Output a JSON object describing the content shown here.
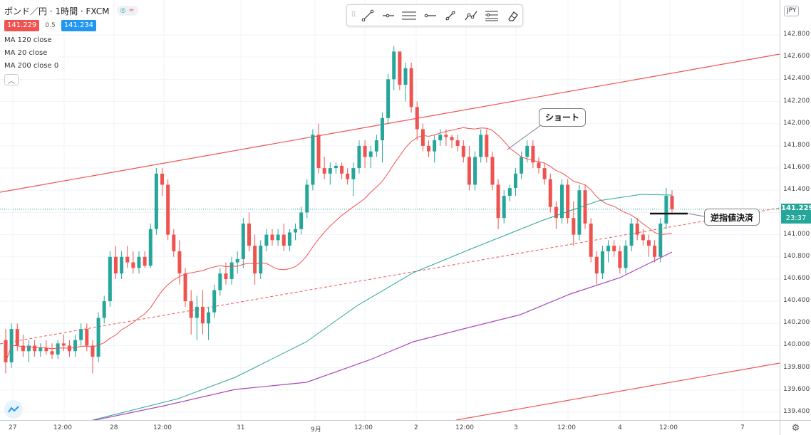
{
  "header": {
    "symbol": "ポンド／円 · 1時間 · FXCM",
    "bid": "141.229",
    "spread": "0.5",
    "ask": "141.234",
    "bid_color": "#ef5350",
    "ask_color": "#2196f3",
    "indicator_toggle": [
      "◎",
      "≈"
    ]
  },
  "indicators": [
    {
      "label": "MA 120 close",
      "color": "#26a69a"
    },
    {
      "label": "MA 20 close",
      "color": "#ef5350"
    },
    {
      "label": "MA 200 close 0",
      "color": "#ab47bc"
    }
  ],
  "collapse_icon": "︿",
  "toolbar_tools": [
    "trend-line-icon",
    "horizontal-ray-icon",
    "parallel-channel-icon",
    "horizontal-line-icon",
    "trend-angle-icon",
    "path-icon",
    "pitchfork-icon",
    "eraser-icon"
  ],
  "price_axis": {
    "currency": "JPY",
    "ticks": [
      "142.800",
      "142.600",
      "142.400",
      "142.200",
      "142.000",
      "141.800",
      "141.600",
      "141.400",
      "141.200",
      "141.000",
      "140.800",
      "140.600",
      "140.400",
      "140.200",
      "140.000",
      "139.800",
      "139.600",
      "139.400"
    ],
    "current_price": "141.229",
    "countdown": "23:37"
  },
  "time_axis": {
    "ticks": [
      "27",
      "12:00",
      "28",
      "12:00",
      "31",
      "9月",
      "12:00",
      "2",
      "12:00",
      "3",
      "12:00",
      "4",
      "12:00",
      "7"
    ]
  },
  "callouts": {
    "short": "ショート",
    "stop": "逆指値決済"
  },
  "settings_icon": "⚙",
  "chart_data": {
    "type": "candlestick",
    "symbol": "GBP/JPY",
    "interval": "1h",
    "ylim": [
      139.35,
      142.9
    ],
    "candles": [
      [
        140.05,
        140.15,
        139.75,
        139.85
      ],
      [
        139.85,
        140.2,
        139.8,
        140.15
      ],
      [
        140.15,
        140.2,
        139.95,
        140.0
      ],
      [
        140.0,
        140.1,
        139.9,
        139.95
      ],
      [
        139.95,
        140.05,
        139.85,
        140.0
      ],
      [
        140.0,
        140.05,
        139.9,
        139.95
      ],
      [
        139.95,
        140.02,
        139.9,
        139.98
      ],
      [
        139.98,
        140.05,
        139.92,
        139.95
      ],
      [
        139.95,
        140.02,
        139.88,
        139.92
      ],
      [
        139.92,
        140.05,
        139.88,
        140.02
      ],
      [
        140.02,
        140.1,
        139.95,
        140.0
      ],
      [
        140.0,
        140.05,
        139.9,
        139.95
      ],
      [
        139.95,
        140.1,
        139.9,
        140.05
      ],
      [
        140.05,
        140.2,
        140.0,
        140.15
      ],
      [
        140.15,
        140.2,
        139.95,
        140.0
      ],
      [
        140.0,
        140.05,
        139.75,
        139.9
      ],
      [
        139.9,
        140.3,
        139.85,
        140.25
      ],
      [
        140.25,
        140.45,
        140.2,
        140.4
      ],
      [
        140.4,
        140.85,
        140.35,
        140.8
      ],
      [
        140.8,
        140.9,
        140.6,
        140.65
      ],
      [
        140.65,
        140.85,
        140.6,
        140.8
      ],
      [
        140.8,
        140.9,
        140.7,
        140.75
      ],
      [
        140.75,
        140.85,
        140.65,
        140.7
      ],
      [
        140.7,
        140.85,
        140.65,
        140.8
      ],
      [
        140.8,
        140.85,
        140.7,
        140.72
      ],
      [
        140.72,
        141.1,
        140.7,
        141.05
      ],
      [
        141.05,
        141.6,
        141.0,
        141.55
      ],
      [
        141.55,
        141.6,
        141.35,
        141.45
      ],
      [
        141.45,
        141.5,
        140.95,
        141.0
      ],
      [
        141.0,
        141.05,
        140.8,
        140.85
      ],
      [
        140.85,
        140.95,
        140.55,
        140.65
      ],
      [
        140.65,
        140.7,
        140.35,
        140.4
      ],
      [
        140.4,
        140.5,
        140.1,
        140.25
      ],
      [
        140.25,
        140.45,
        140.05,
        140.35
      ],
      [
        140.35,
        140.5,
        140.1,
        140.2
      ],
      [
        140.2,
        140.35,
        140.05,
        140.3
      ],
      [
        140.3,
        140.55,
        140.25,
        140.5
      ],
      [
        140.5,
        140.7,
        140.45,
        140.65
      ],
      [
        140.65,
        140.75,
        140.55,
        140.6
      ],
      [
        140.6,
        140.8,
        140.55,
        140.75
      ],
      [
        140.75,
        140.85,
        140.65,
        140.78
      ],
      [
        140.78,
        141.15,
        140.7,
        141.1
      ],
      [
        141.1,
        141.2,
        140.85,
        140.9
      ],
      [
        140.9,
        141.0,
        140.55,
        140.65
      ],
      [
        140.65,
        140.95,
        140.6,
        140.9
      ],
      [
        140.9,
        141.05,
        140.85,
        141.0
      ],
      [
        141.0,
        141.05,
        140.9,
        140.95
      ],
      [
        140.95,
        141.05,
        140.9,
        141.0
      ],
      [
        141.0,
        141.1,
        140.85,
        140.9
      ],
      [
        140.9,
        141.05,
        140.85,
        141.02
      ],
      [
        141.02,
        141.1,
        140.95,
        141.05
      ],
      [
        141.05,
        141.25,
        141.0,
        141.2
      ],
      [
        141.2,
        141.5,
        141.15,
        141.45
      ],
      [
        141.45,
        141.95,
        141.4,
        141.9
      ],
      [
        141.9,
        142.0,
        141.55,
        141.6
      ],
      [
        141.6,
        141.7,
        141.5,
        141.55
      ],
      [
        141.55,
        141.65,
        141.45,
        141.6
      ],
      [
        141.6,
        141.65,
        141.55,
        141.62
      ],
      [
        141.62,
        141.65,
        141.5,
        141.55
      ],
      [
        141.55,
        141.6,
        141.45,
        141.5
      ],
      [
        141.5,
        141.65,
        141.35,
        141.6
      ],
      [
        141.6,
        141.85,
        141.55,
        141.8
      ],
      [
        141.8,
        141.85,
        141.6,
        141.7
      ],
      [
        141.7,
        141.8,
        141.6,
        141.75
      ],
      [
        141.75,
        141.9,
        141.7,
        141.85
      ],
      [
        141.85,
        142.1,
        141.65,
        142.05
      ],
      [
        142.05,
        142.45,
        142.0,
        142.4
      ],
      [
        142.4,
        142.7,
        142.3,
        142.65
      ],
      [
        142.65,
        142.65,
        142.3,
        142.35
      ],
      [
        142.35,
        142.55,
        142.2,
        142.5
      ],
      [
        142.5,
        142.55,
        142.1,
        142.15
      ],
      [
        142.15,
        142.2,
        141.85,
        141.95
      ],
      [
        141.95,
        142.0,
        141.75,
        141.8
      ],
      [
        141.8,
        141.85,
        141.7,
        141.75
      ],
      [
        141.75,
        141.9,
        141.65,
        141.85
      ],
      [
        141.85,
        141.95,
        141.8,
        141.9
      ],
      [
        141.9,
        141.95,
        141.8,
        141.88
      ],
      [
        141.88,
        141.9,
        141.78,
        141.85
      ],
      [
        141.85,
        141.9,
        141.75,
        141.8
      ],
      [
        141.8,
        141.85,
        141.65,
        141.7
      ],
      [
        141.7,
        141.8,
        141.4,
        141.45
      ],
      [
        141.45,
        141.75,
        141.4,
        141.7
      ],
      [
        141.7,
        141.95,
        141.65,
        141.9
      ],
      [
        141.9,
        141.95,
        141.65,
        141.7
      ],
      [
        141.7,
        141.75,
        141.4,
        141.45
      ],
      [
        141.45,
        141.5,
        141.05,
        141.15
      ],
      [
        141.15,
        141.4,
        141.1,
        141.35
      ],
      [
        141.35,
        141.45,
        141.3,
        141.42
      ],
      [
        141.42,
        141.6,
        141.35,
        141.55
      ],
      [
        141.55,
        141.75,
        141.5,
        141.7
      ],
      [
        141.7,
        141.85,
        141.65,
        141.8
      ],
      [
        141.8,
        141.85,
        141.6,
        141.65
      ],
      [
        141.65,
        141.7,
        141.55,
        141.6
      ],
      [
        141.6,
        141.65,
        141.45,
        141.5
      ],
      [
        141.5,
        141.55,
        141.2,
        141.25
      ],
      [
        141.25,
        141.3,
        141.05,
        141.15
      ],
      [
        141.15,
        141.5,
        141.1,
        141.45
      ],
      [
        141.45,
        141.5,
        141.1,
        141.15
      ],
      [
        141.15,
        141.3,
        140.9,
        141.0
      ],
      [
        141.0,
        141.45,
        140.95,
        141.4
      ],
      [
        141.4,
        141.45,
        141.05,
        141.1
      ],
      [
        141.1,
        141.15,
        140.75,
        140.8
      ],
      [
        140.8,
        140.85,
        140.55,
        140.65
      ],
      [
        140.65,
        140.9,
        140.6,
        140.85
      ],
      [
        140.85,
        140.95,
        140.75,
        140.9
      ],
      [
        140.9,
        140.95,
        140.8,
        140.85
      ],
      [
        140.85,
        140.9,
        140.65,
        140.7
      ],
      [
        140.7,
        140.95,
        140.65,
        140.9
      ],
      [
        140.9,
        141.15,
        140.85,
        141.1
      ],
      [
        141.1,
        141.15,
        140.95,
        141.0
      ],
      [
        141.0,
        141.05,
        140.9,
        140.95
      ],
      [
        140.95,
        141.0,
        140.8,
        140.9
      ],
      [
        140.9,
        140.95,
        140.75,
        140.8
      ],
      [
        140.8,
        141.15,
        140.75,
        141.1
      ],
      [
        141.1,
        141.42,
        141.05,
        141.35
      ],
      [
        141.35,
        141.4,
        141.2,
        141.23
      ]
    ]
  }
}
